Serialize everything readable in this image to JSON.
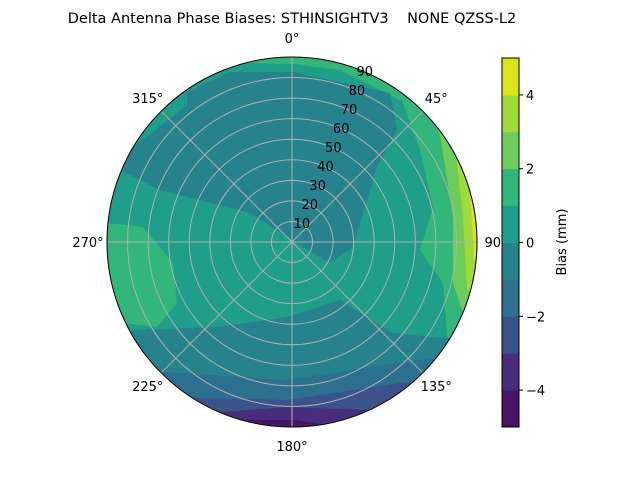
{
  "chart_data": {
    "type": "heatmap",
    "subtype": "polar filled contour",
    "title": "Delta Antenna Phase Biases: STHINSIGHTV3    NONE QZSS-L2",
    "theta_direction": "clockwise",
    "theta_zero": "top",
    "theta_ticks": [
      "0°",
      "45°",
      "90°",
      "135°",
      "180°",
      "225°",
      "270°",
      "315°"
    ],
    "r_ticks": [
      "10",
      "20",
      "30",
      "40",
      "50",
      "60",
      "70",
      "80",
      "90"
    ],
    "r_range": [
      0,
      90
    ],
    "grid": true,
    "colormap": "viridis",
    "levels": [
      -5,
      -4,
      -3,
      -2,
      -1,
      0,
      1,
      2,
      3,
      4,
      5
    ],
    "level_colors": [
      "#471466",
      "#472d7b",
      "#3b528b",
      "#2d6f8e",
      "#26838e",
      "#1f9e89",
      "#32b67a",
      "#6ccd5a",
      "#a0da39",
      "#dde318"
    ],
    "colorbar": {
      "label": "Bias (mm)",
      "range": [
        -5,
        5
      ],
      "ticks": [
        "4",
        "2",
        "0",
        "−2",
        "−4"
      ],
      "tick_values": [
        4,
        2,
        0,
        -2,
        -4
      ],
      "placement": "right"
    }
  }
}
